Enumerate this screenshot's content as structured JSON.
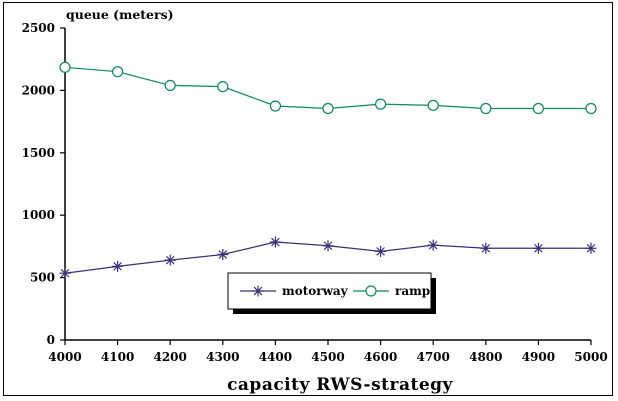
{
  "chart_data": {
    "type": "line",
    "title": "",
    "ylabel": "queue (meters)",
    "xlabel": "capacity RWS-strategy",
    "x": [
      4000,
      4100,
      4200,
      4300,
      4400,
      4500,
      4600,
      4700,
      4800,
      4900,
      5000
    ],
    "xlim": [
      4000,
      5000
    ],
    "ylim": [
      0,
      2500
    ],
    "yticks": [
      0,
      500,
      1000,
      1500,
      2000,
      2500
    ],
    "grid": false,
    "legend_position": "lower-center",
    "series": [
      {
        "name": "motorway",
        "color": "#3a2f7a",
        "marker": "asterisk",
        "values": [
          535,
          590,
          640,
          685,
          785,
          755,
          710,
          760,
          735,
          735,
          735
        ]
      },
      {
        "name": "ramp",
        "color": "#0b8a5a",
        "marker": "circle",
        "values": [
          2185,
          2150,
          2040,
          2030,
          1875,
          1855,
          1890,
          1880,
          1855,
          1855,
          1855
        ]
      }
    ]
  }
}
